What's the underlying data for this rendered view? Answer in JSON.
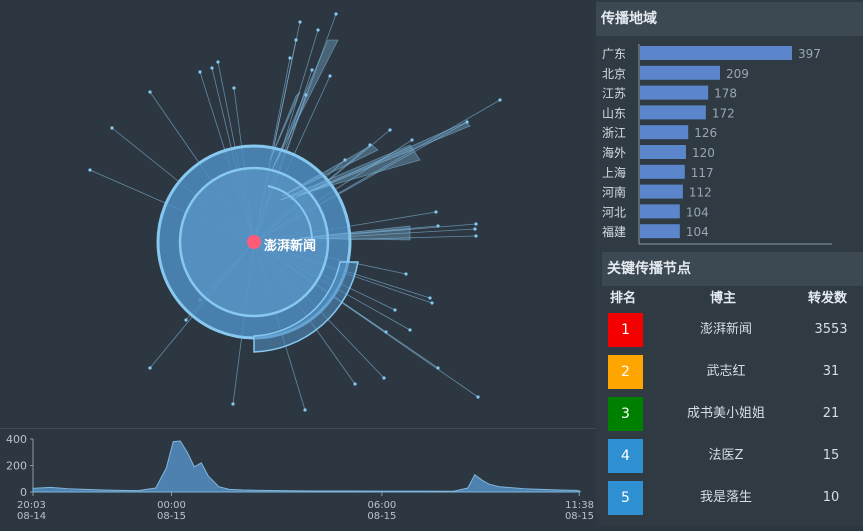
{
  "network": {
    "center_label": "澎湃新闻",
    "colors": {
      "node": "#ff5b79",
      "ring": "#86c8f0",
      "edge": "#7fb7dc"
    }
  },
  "timeline": {
    "y_ticks": [
      400,
      200,
      0
    ],
    "x_ticks": [
      {
        "time": "20:03",
        "date": "08-14"
      },
      {
        "time": "00:00",
        "date": "08-15"
      },
      {
        "time": "06:00",
        "date": "08-15"
      },
      {
        "time": "11:38",
        "date": "08-15"
      }
    ],
    "series_hours": [
      0,
      0.5,
      1,
      1.5,
      2,
      2.5,
      3,
      3.5,
      3.8,
      4.0,
      4.2,
      4.4,
      4.6,
      4.8,
      5.0,
      5.3,
      5.6,
      6,
      6.5,
      7,
      8,
      9,
      10,
      11,
      12,
      12.4,
      12.6,
      12.8,
      13.0,
      13.3,
      14,
      14.5,
      15,
      15.5,
      15.6
    ],
    "series_values": [
      28,
      35,
      25,
      20,
      15,
      12,
      10,
      30,
      180,
      380,
      385,
      300,
      190,
      220,
      120,
      40,
      20,
      15,
      12,
      10,
      8,
      8,
      7,
      7,
      6,
      30,
      130,
      90,
      60,
      40,
      25,
      20,
      15,
      12,
      6
    ]
  },
  "region": {
    "title": "传播地域",
    "items": [
      {
        "name": "广东",
        "value": 397
      },
      {
        "name": "北京",
        "value": 209
      },
      {
        "name": "江苏",
        "value": 178
      },
      {
        "name": "山东",
        "value": 172
      },
      {
        "name": "浙江",
        "value": 126
      },
      {
        "name": "海外",
        "value": 120
      },
      {
        "name": "上海",
        "value": 117
      },
      {
        "name": "河南",
        "value": 112
      },
      {
        "name": "河北",
        "value": 104
      },
      {
        "name": "福建",
        "value": 104
      }
    ],
    "bar_color": "#5b86cc"
  },
  "nodes": {
    "title": "关键传播节点",
    "headers": {
      "rank": "排名",
      "blogger": "博主",
      "reposts": "转发数"
    },
    "rows": [
      {
        "rank": "1",
        "name": "澎湃新闻",
        "reposts": "3553",
        "color": "#f40000"
      },
      {
        "rank": "2",
        "name": "武志红",
        "reposts": "31",
        "color": "#ffa500"
      },
      {
        "rank": "3",
        "name": "成书美小姐姐",
        "reposts": "21",
        "color": "#008000"
      },
      {
        "rank": "4",
        "name": "法医Z",
        "reposts": "15",
        "color": "#2e8fd1"
      },
      {
        "rank": "5",
        "name": "我是落生",
        "reposts": "10",
        "color": "#2e8fd1"
      }
    ]
  }
}
